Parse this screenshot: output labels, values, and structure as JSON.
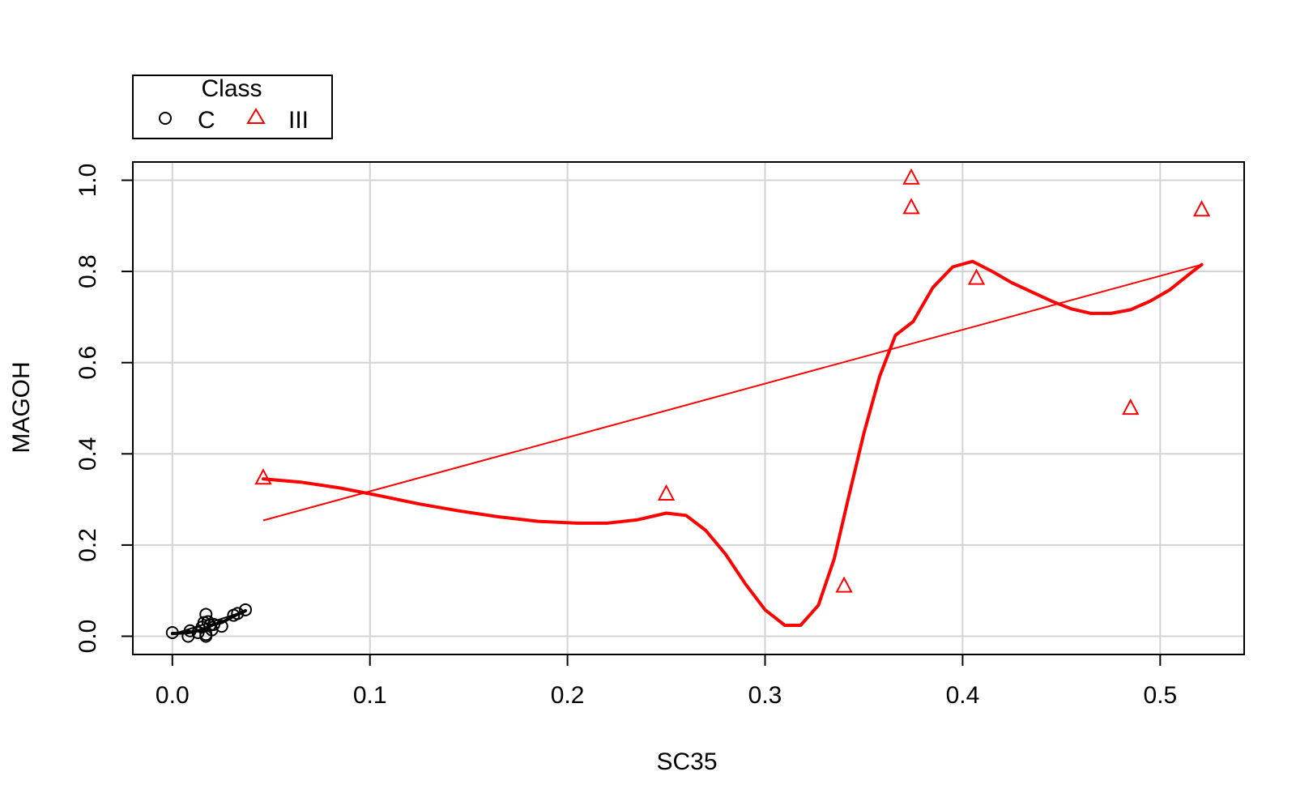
{
  "chart_data": {
    "type": "scatter",
    "title": "",
    "xlabel": "SC35",
    "ylabel": "MAGOH",
    "xlim": [
      -0.02,
      0.5425
    ],
    "ylim": [
      -0.04,
      1.04
    ],
    "x_ticks": [
      0.0,
      0.1,
      0.2,
      0.3,
      0.4,
      0.5
    ],
    "x_tick_labels": [
      "0.0",
      "0.1",
      "0.2",
      "0.3",
      "0.4",
      "0.5"
    ],
    "y_ticks": [
      0.0,
      0.2,
      0.4,
      0.6,
      0.8,
      1.0
    ],
    "y_tick_labels": [
      "0.0",
      "0.2",
      "0.4",
      "0.6",
      "0.8",
      "1.0"
    ],
    "grid": true,
    "grid_color": "#d3d3d3",
    "legend": {
      "title": "Class",
      "placement": "top-left, above plot area",
      "entries": [
        {
          "label": "C",
          "symbol": "circle",
          "color": "#000000"
        },
        {
          "label": "III",
          "symbol": "triangle",
          "color": "#ff0000"
        }
      ]
    },
    "series": [
      {
        "name": "C",
        "symbol": "circle",
        "color": "#000000",
        "points": [
          {
            "x": 0.0,
            "y": 0.008
          },
          {
            "x": 0.008,
            "y": 0.0
          },
          {
            "x": 0.009,
            "y": 0.012
          },
          {
            "x": 0.013,
            "y": 0.008
          },
          {
            "x": 0.015,
            "y": 0.02
          },
          {
            "x": 0.016,
            "y": 0.03
          },
          {
            "x": 0.017,
            "y": 0.004
          },
          {
            "x": 0.017,
            "y": 0.0
          },
          {
            "x": 0.017,
            "y": 0.048
          },
          {
            "x": 0.018,
            "y": 0.032
          },
          {
            "x": 0.019,
            "y": 0.024
          },
          {
            "x": 0.02,
            "y": 0.014
          },
          {
            "x": 0.021,
            "y": 0.026
          },
          {
            "x": 0.025,
            "y": 0.022
          },
          {
            "x": 0.031,
            "y": 0.046
          },
          {
            "x": 0.033,
            "y": 0.05
          },
          {
            "x": 0.037,
            "y": 0.058
          }
        ],
        "fit_line": {
          "x": [
            0.0,
            0.037
          ],
          "y": [
            0.004,
            0.055
          ]
        },
        "smooth_curve": {
          "x": [
            0.0,
            0.008,
            0.013,
            0.017,
            0.021,
            0.025,
            0.031,
            0.037
          ],
          "y": [
            0.006,
            0.008,
            0.012,
            0.018,
            0.026,
            0.03,
            0.044,
            0.056
          ]
        }
      },
      {
        "name": "III",
        "symbol": "triangle",
        "color": "#ff0000",
        "points": [
          {
            "x": 0.046,
            "y": 0.345
          },
          {
            "x": 0.25,
            "y": 0.31
          },
          {
            "x": 0.34,
            "y": 0.108
          },
          {
            "x": 0.374,
            "y": 1.003
          },
          {
            "x": 0.374,
            "y": 0.938
          },
          {
            "x": 0.407,
            "y": 0.783
          },
          {
            "x": 0.485,
            "y": 0.498
          },
          {
            "x": 0.521,
            "y": 0.933
          }
        ],
        "fit_line": {
          "x": [
            0.046,
            0.521
          ],
          "y": [
            0.254,
            0.815
          ]
        },
        "smooth_curve": {
          "x": [
            0.046,
            0.065,
            0.085,
            0.105,
            0.125,
            0.145,
            0.165,
            0.185,
            0.205,
            0.22,
            0.235,
            0.25,
            0.26,
            0.27,
            0.28,
            0.29,
            0.3,
            0.31,
            0.318,
            0.327,
            0.335,
            0.342,
            0.35,
            0.358,
            0.366,
            0.375,
            0.385,
            0.395,
            0.405,
            0.415,
            0.425,
            0.435,
            0.445,
            0.455,
            0.465,
            0.475,
            0.485,
            0.495,
            0.505,
            0.515,
            0.521
          ],
          "y": [
            0.345,
            0.338,
            0.325,
            0.308,
            0.29,
            0.275,
            0.262,
            0.252,
            0.248,
            0.248,
            0.255,
            0.27,
            0.265,
            0.232,
            0.18,
            0.115,
            0.058,
            0.024,
            0.024,
            0.068,
            0.17,
            0.3,
            0.445,
            0.57,
            0.66,
            0.69,
            0.765,
            0.81,
            0.822,
            0.8,
            0.775,
            0.755,
            0.735,
            0.718,
            0.708,
            0.708,
            0.716,
            0.735,
            0.76,
            0.795,
            0.815
          ]
        }
      }
    ]
  }
}
